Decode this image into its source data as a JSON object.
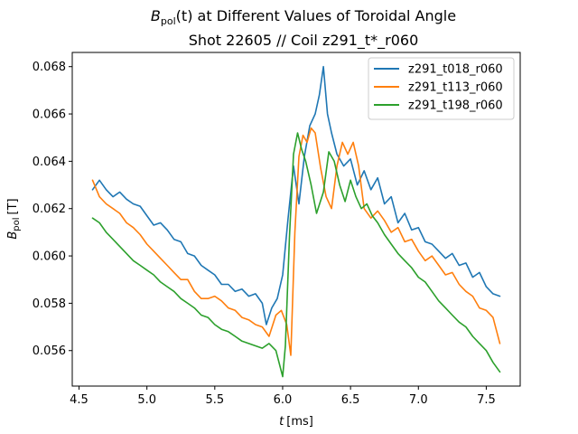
{
  "chart_data": {
    "type": "line",
    "title": "B_pol(t) at Different Values of Toroidal Angle",
    "title_parts": {
      "symbol": "B",
      "subscript": "pol",
      "arg": "(t)",
      "rest": " at Different Values of Toroidal Angle"
    },
    "subtitle": "Shot 22605 // Coil z291_t*_r060",
    "xlabel": "t [ms]",
    "xlabel_parts": {
      "symbol": "t",
      "unit": "[ms]"
    },
    "ylabel": "B_pol [T]",
    "ylabel_parts": {
      "symbol": "B",
      "subscript": "pol",
      "unit": "[T]"
    },
    "xlim": [
      4.45,
      7.75
    ],
    "ylim": [
      0.0545,
      0.0686
    ],
    "xticks": [
      4.5,
      5.0,
      5.5,
      6.0,
      6.5,
      7.0,
      7.5
    ],
    "xtick_labels": [
      "4.5",
      "5.0",
      "5.5",
      "6.0",
      "6.5",
      "7.0",
      "7.5"
    ],
    "yticks": [
      0.056,
      0.058,
      0.06,
      0.062,
      0.064,
      0.066,
      0.068
    ],
    "ytick_labels": [
      "0.056",
      "0.058",
      "0.060",
      "0.062",
      "0.064",
      "0.066",
      "0.068"
    ],
    "grid": false,
    "legend_position": "top-right",
    "series": [
      {
        "name": "z291_t018_r060",
        "color": "#1f77b4",
        "x": [
          4.6,
          4.65,
          4.7,
          4.75,
          4.8,
          4.85,
          4.9,
          4.95,
          5.0,
          5.05,
          5.1,
          5.15,
          5.2,
          5.25,
          5.3,
          5.35,
          5.4,
          5.45,
          5.5,
          5.55,
          5.6,
          5.65,
          5.7,
          5.75,
          5.8,
          5.85,
          5.88,
          5.92,
          5.96,
          6.0,
          6.04,
          6.08,
          6.12,
          6.16,
          6.2,
          6.24,
          6.27,
          6.3,
          6.33,
          6.36,
          6.4,
          6.45,
          6.5,
          6.55,
          6.6,
          6.65,
          6.7,
          6.75,
          6.8,
          6.85,
          6.9,
          6.95,
          7.0,
          7.05,
          7.1,
          7.15,
          7.2,
          7.25,
          7.3,
          7.35,
          7.4,
          7.45,
          7.5,
          7.55,
          7.6
        ],
        "values": [
          0.0628,
          0.0632,
          0.0628,
          0.0625,
          0.0627,
          0.0624,
          0.0622,
          0.0621,
          0.0617,
          0.0613,
          0.0614,
          0.0611,
          0.0607,
          0.0606,
          0.0601,
          0.06,
          0.0596,
          0.0594,
          0.0592,
          0.0588,
          0.0588,
          0.0585,
          0.0586,
          0.0583,
          0.0584,
          0.058,
          0.0571,
          0.0578,
          0.0582,
          0.0592,
          0.0616,
          0.0638,
          0.0622,
          0.0642,
          0.0655,
          0.066,
          0.0668,
          0.068,
          0.066,
          0.0652,
          0.0643,
          0.0638,
          0.0641,
          0.063,
          0.0636,
          0.0628,
          0.0633,
          0.0622,
          0.0625,
          0.0614,
          0.0618,
          0.0611,
          0.0612,
          0.0606,
          0.0605,
          0.0602,
          0.0599,
          0.0601,
          0.0596,
          0.0597,
          0.0591,
          0.0593,
          0.0587,
          0.0584,
          0.0583
        ]
      },
      {
        "name": "z291_t113_r060",
        "color": "#ff7f0e",
        "x": [
          4.6,
          4.65,
          4.7,
          4.75,
          4.8,
          4.85,
          4.9,
          4.95,
          5.0,
          5.05,
          5.1,
          5.15,
          5.2,
          5.25,
          5.3,
          5.35,
          5.4,
          5.45,
          5.5,
          5.55,
          5.6,
          5.65,
          5.7,
          5.75,
          5.8,
          5.85,
          5.9,
          5.95,
          5.99,
          6.03,
          6.06,
          6.09,
          6.12,
          6.15,
          6.18,
          6.21,
          6.24,
          6.28,
          6.32,
          6.36,
          6.4,
          6.44,
          6.48,
          6.52,
          6.56,
          6.6,
          6.65,
          6.7,
          6.75,
          6.8,
          6.85,
          6.9,
          6.95,
          7.0,
          7.05,
          7.1,
          7.15,
          7.2,
          7.25,
          7.3,
          7.35,
          7.4,
          7.45,
          7.5,
          7.55,
          7.6
        ],
        "values": [
          0.0632,
          0.0625,
          0.0622,
          0.062,
          0.0618,
          0.0614,
          0.0612,
          0.0609,
          0.0605,
          0.0602,
          0.0599,
          0.0596,
          0.0593,
          0.059,
          0.059,
          0.0585,
          0.0582,
          0.0582,
          0.0583,
          0.0581,
          0.0578,
          0.0577,
          0.0574,
          0.0573,
          0.0571,
          0.057,
          0.0566,
          0.0575,
          0.0577,
          0.0571,
          0.0558,
          0.061,
          0.0642,
          0.0651,
          0.0648,
          0.0654,
          0.0652,
          0.0637,
          0.0625,
          0.062,
          0.0638,
          0.0648,
          0.0643,
          0.0648,
          0.0638,
          0.062,
          0.0616,
          0.0619,
          0.0615,
          0.061,
          0.0612,
          0.0606,
          0.0607,
          0.0602,
          0.0598,
          0.06,
          0.0596,
          0.0592,
          0.0593,
          0.0588,
          0.0585,
          0.0583,
          0.0578,
          0.0577,
          0.0574,
          0.0563
        ]
      },
      {
        "name": "z291_t198_r060",
        "color": "#2ca02c",
        "x": [
          4.6,
          4.65,
          4.7,
          4.75,
          4.8,
          4.85,
          4.9,
          4.95,
          5.0,
          5.05,
          5.1,
          5.15,
          5.2,
          5.25,
          5.3,
          5.35,
          5.4,
          5.45,
          5.5,
          5.55,
          5.6,
          5.65,
          5.7,
          5.75,
          5.8,
          5.85,
          5.9,
          5.95,
          6.0,
          6.02,
          6.05,
          6.08,
          6.11,
          6.14,
          6.17,
          6.21,
          6.25,
          6.3,
          6.34,
          6.38,
          6.42,
          6.46,
          6.5,
          6.54,
          6.58,
          6.62,
          6.66,
          6.7,
          6.75,
          6.8,
          6.85,
          6.9,
          6.95,
          7.0,
          7.05,
          7.1,
          7.15,
          7.2,
          7.25,
          7.3,
          7.35,
          7.4,
          7.45,
          7.5,
          7.55,
          7.6
        ],
        "values": [
          0.0616,
          0.0614,
          0.061,
          0.0607,
          0.0604,
          0.0601,
          0.0598,
          0.0596,
          0.0594,
          0.0592,
          0.0589,
          0.0587,
          0.0585,
          0.0582,
          0.058,
          0.0578,
          0.0575,
          0.0574,
          0.0571,
          0.0569,
          0.0568,
          0.0566,
          0.0564,
          0.0563,
          0.0562,
          0.0561,
          0.0563,
          0.056,
          0.0549,
          0.0562,
          0.0608,
          0.0643,
          0.0652,
          0.0645,
          0.064,
          0.063,
          0.0618,
          0.0627,
          0.0644,
          0.064,
          0.063,
          0.0623,
          0.0632,
          0.0625,
          0.062,
          0.0622,
          0.0617,
          0.0614,
          0.0609,
          0.0605,
          0.0601,
          0.0598,
          0.0595,
          0.0591,
          0.0589,
          0.0585,
          0.0581,
          0.0578,
          0.0575,
          0.0572,
          0.057,
          0.0566,
          0.0563,
          0.056,
          0.0555,
          0.0551
        ]
      }
    ]
  }
}
